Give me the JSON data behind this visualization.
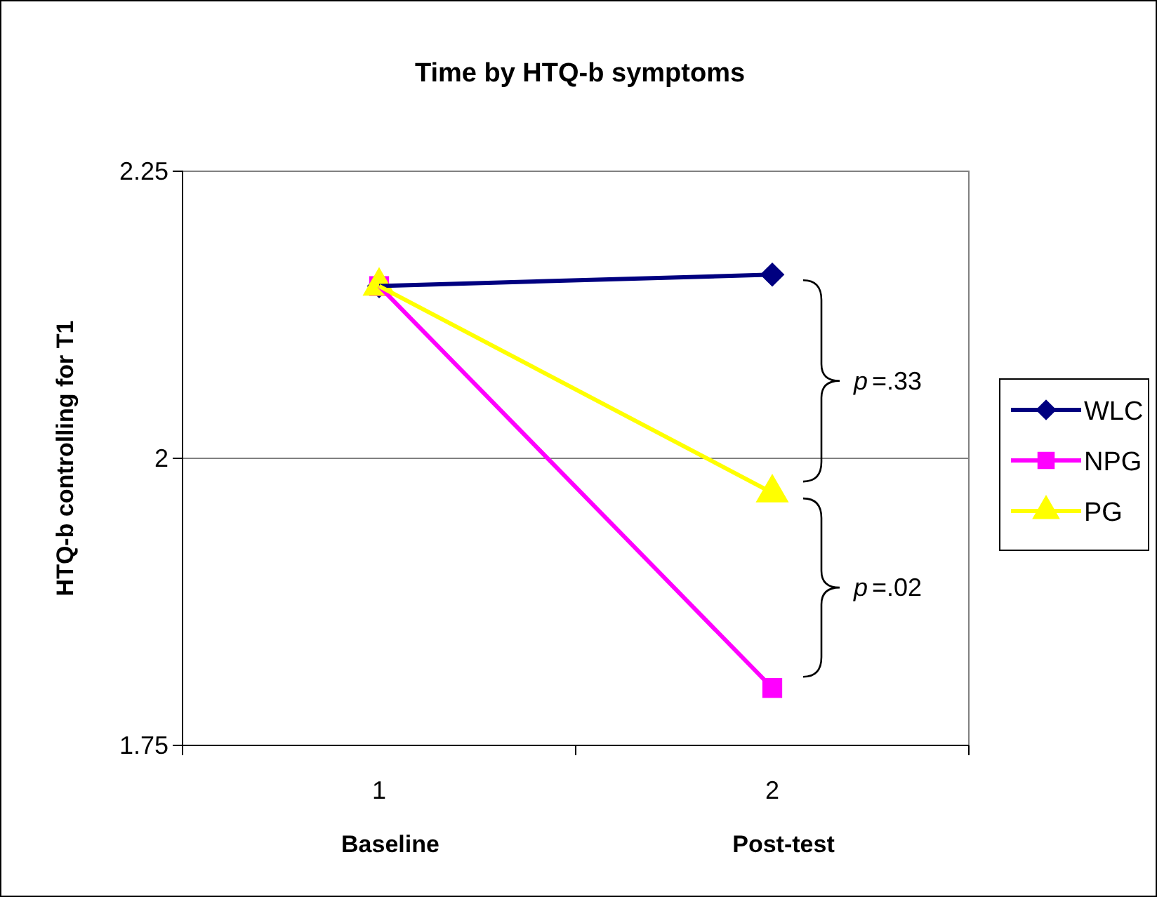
{
  "chart_data": {
    "type": "line",
    "title": "Time by HTQ-b symptoms",
    "ylabel": "HTQ-b controlling for T1",
    "categories": [
      "1\nBaseline",
      "2\nPost-test"
    ],
    "series": [
      {
        "name": "WLC",
        "color": "#000080",
        "marker": "diamond",
        "values": [
          2.15,
          2.16
        ]
      },
      {
        "name": "NPG",
        "color": "#ff00ff",
        "marker": "square",
        "values": [
          2.15,
          1.8
        ]
      },
      {
        "name": "PG",
        "color": "#ffff00",
        "marker": "triangle",
        "values": [
          2.15,
          1.97
        ]
      }
    ],
    "ylim": [
      1.75,
      2.25
    ],
    "yticks": [
      1.75,
      2,
      2.25
    ],
    "grid": "y",
    "legend": "right",
    "annotations": [
      "p=.33",
      "p=.02"
    ]
  }
}
